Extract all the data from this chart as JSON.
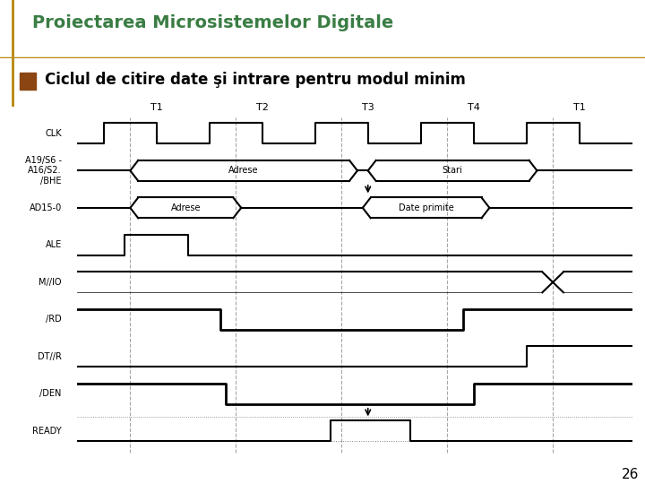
{
  "title": "Proiectarea Microsistemelor Digitale",
  "subtitle": "Ciclul de citire date şi intrare pentru modul minim",
  "page_number": "26",
  "title_color": "#3a7d44",
  "border_color": "#b8860b",
  "bullet_color": "#8B4513",
  "background_color": "#ffffff",
  "t_labels": [
    "T1",
    "T2",
    "T3",
    "T4",
    "T1"
  ],
  "t_positions": [
    1.5,
    3.5,
    5.5,
    7.5,
    9.5
  ],
  "vline_positions": [
    1.0,
    3.0,
    5.0,
    7.0,
    9.0
  ],
  "diagram_xlim": [
    0,
    10.5
  ]
}
